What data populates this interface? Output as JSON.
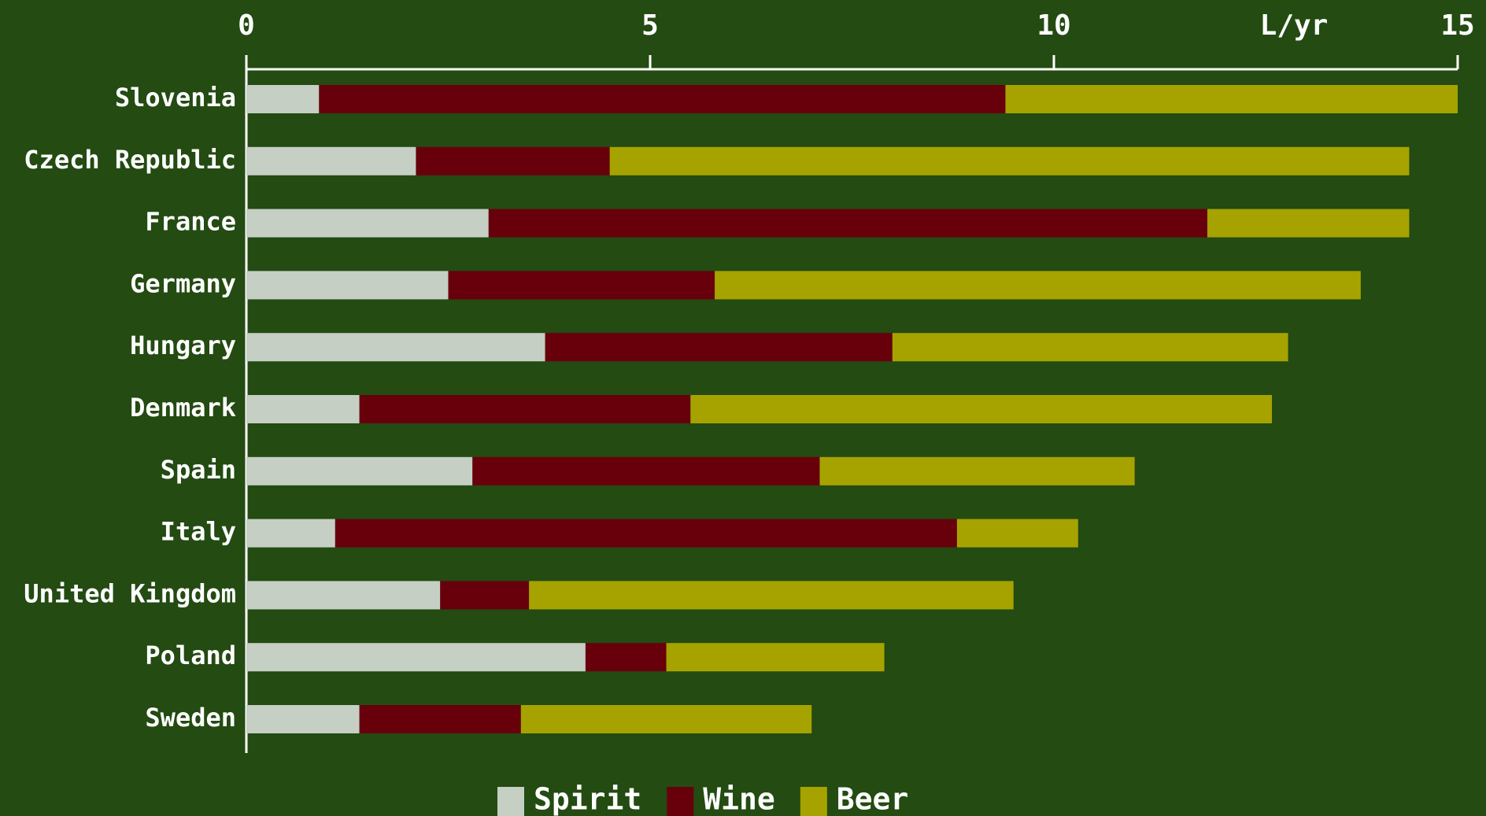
{
  "chart_data": {
    "type": "stacked_bar_horizontal",
    "x_label": "L/yr",
    "categories": [
      "Slovenia",
      "Czech Republic",
      "France",
      "Germany",
      "Hungary",
      "Denmark",
      "Spain",
      "Italy",
      "United Kingdom",
      "Poland",
      "Sweden"
    ],
    "series": [
      {
        "name": "Spirit",
        "color": "#c5cfc4",
        "values": [
          0.9,
          2.1,
          3.0,
          2.5,
          3.7,
          1.4,
          2.8,
          1.1,
          2.4,
          4.2,
          1.4
        ]
      },
      {
        "name": "Wine",
        "color": "#68000c",
        "values": [
          8.5,
          2.4,
          8.9,
          3.3,
          4.3,
          4.1,
          4.3,
          7.7,
          1.1,
          1.0,
          2.0
        ]
      },
      {
        "name": "Beer",
        "color": "#a6a300",
        "values": [
          5.6,
          9.9,
          2.5,
          8.0,
          4.9,
          7.2,
          3.9,
          1.5,
          6.0,
          2.7,
          3.6
        ]
      }
    ],
    "xlim": [
      0,
      15
    ],
    "xticks": [
      0,
      5,
      10,
      15
    ]
  }
}
